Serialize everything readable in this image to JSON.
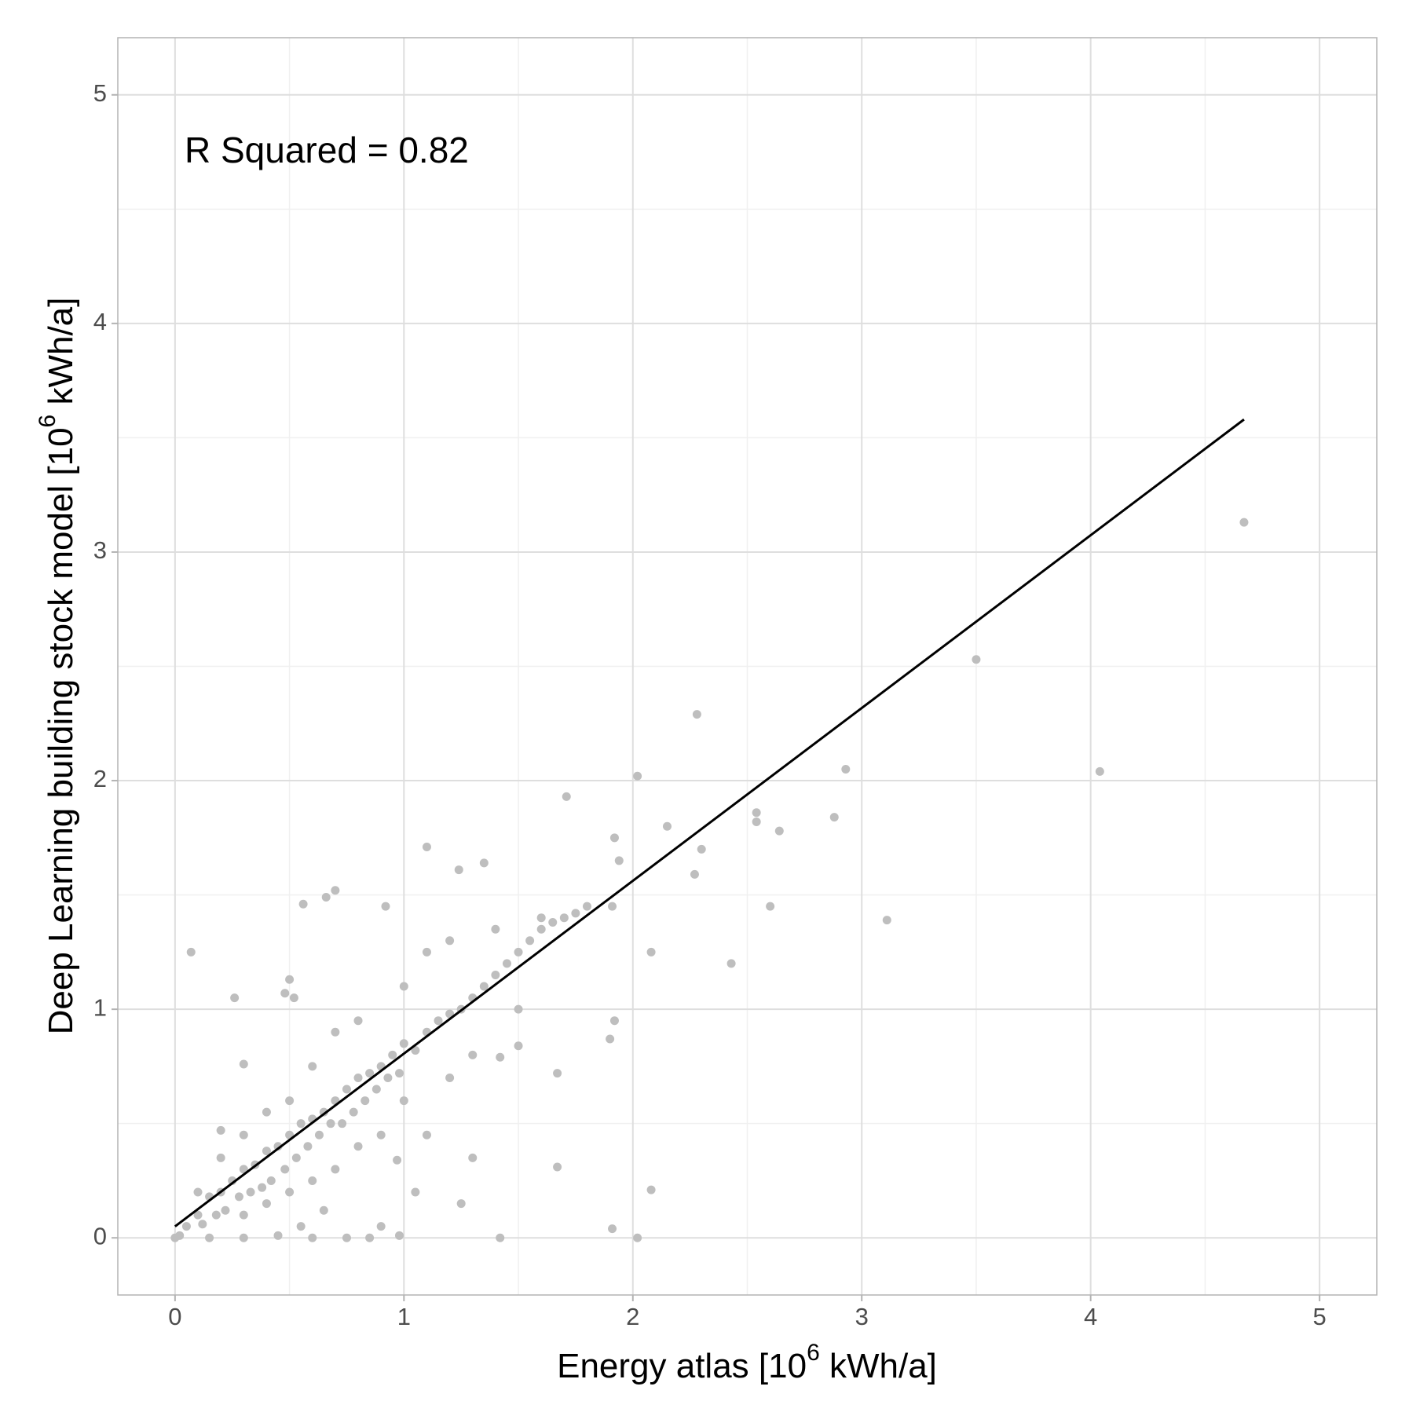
{
  "chart_data": {
    "type": "scatter",
    "xlabel": [
      "Energy atlas [10",
      "6",
      " kWh/a]"
    ],
    "ylabel": [
      "Deep Learning building stock model [10",
      "6",
      " kWh/a]"
    ],
    "annotation": "R Squared = 0.82",
    "xlim": [
      -0.25,
      5.25
    ],
    "ylim": [
      -0.25,
      5.25
    ],
    "xticks": [
      0,
      1,
      2,
      3,
      4,
      5
    ],
    "yticks": [
      0,
      1,
      2,
      3,
      4,
      5
    ],
    "minor_ticks": [
      0.5,
      1.5,
      2.5,
      3.5,
      4.5
    ],
    "grid": true,
    "series": [
      {
        "type": "scatter",
        "color": "#bebebe",
        "x": [
          0.07,
          0.26,
          4.67,
          3.5,
          4.04,
          2.28,
          2.93,
          2.02,
          2.88,
          2.54,
          2.54,
          2.64,
          2.6,
          3.11,
          2.43,
          2.08,
          2.27,
          2.15,
          2.3,
          1.71,
          1.1,
          1.35,
          1.24,
          0.7,
          0.66,
          0.56,
          0.92,
          1.92,
          1.94,
          1.91,
          1.92,
          1.9,
          1.67,
          1.67,
          2.08,
          1.91,
          2.02,
          1.42,
          1.42,
          1.5,
          1.3,
          1.25,
          1.05,
          1.1,
          0.97,
          0.98,
          0.75,
          0.6,
          0.5,
          0.48,
          0.52,
          0.3,
          0.2,
          0.1,
          0.05,
          0,
          0.02,
          0.15,
          0.3,
          0.45,
          0.85,
          0.9,
          0.1,
          0.12,
          0.15,
          0.18,
          0.2,
          0.22,
          0.25,
          0.28,
          0.3,
          0.33,
          0.35,
          0.38,
          0.4,
          0.42,
          0.45,
          0.48,
          0.5,
          0.53,
          0.55,
          0.58,
          0.6,
          0.63,
          0.65,
          0.68,
          0.7,
          0.73,
          0.75,
          0.78,
          0.8,
          0.83,
          0.85,
          0.88,
          0.9,
          0.93,
          0.95,
          0.98,
          1.0,
          1.05,
          1.1,
          1.15,
          1.2,
          1.25,
          1.3,
          1.35,
          1.4,
          1.45,
          1.5,
          1.55,
          1.6,
          1.65,
          1.7,
          1.75,
          1.8,
          0.2,
          0.3,
          0.4,
          0.5,
          0.6,
          0.7,
          0.8,
          1.0,
          1.1,
          1.2,
          1.4,
          1.6,
          0.3,
          0.4,
          0.5,
          0.6,
          0.7,
          0.8,
          0.9,
          1.0,
          1.2,
          1.3,
          1.5,
          0.55,
          0.65
        ],
        "values": [
          1.25,
          1.05,
          3.13,
          2.53,
          2.04,
          2.29,
          2.05,
          2.02,
          1.84,
          1.86,
          1.82,
          1.78,
          1.45,
          1.39,
          1.2,
          1.25,
          1.59,
          1.8,
          1.7,
          1.93,
          1.71,
          1.64,
          1.61,
          1.52,
          1.49,
          1.46,
          1.45,
          1.75,
          1.65,
          1.45,
          0.95,
          0.87,
          0.72,
          0.31,
          0.21,
          0.04,
          0,
          0,
          0.79,
          0.84,
          0.35,
          0.15,
          0.2,
          0.45,
          0.34,
          0.01,
          0,
          0,
          1.13,
          1.07,
          1.05,
          0.76,
          0.47,
          0.2,
          0.05,
          0,
          0.01,
          0,
          0,
          0.01,
          0,
          0.05,
          0.1,
          0.06,
          0.18,
          0.1,
          0.2,
          0.12,
          0.25,
          0.18,
          0.3,
          0.2,
          0.32,
          0.22,
          0.38,
          0.25,
          0.4,
          0.3,
          0.45,
          0.35,
          0.5,
          0.4,
          0.52,
          0.45,
          0.55,
          0.5,
          0.6,
          0.5,
          0.65,
          0.55,
          0.7,
          0.6,
          0.72,
          0.65,
          0.75,
          0.7,
          0.8,
          0.72,
          0.85,
          0.82,
          0.9,
          0.95,
          0.98,
          1.0,
          1.05,
          1.1,
          1.15,
          1.2,
          1.25,
          1.3,
          1.35,
          1.38,
          1.4,
          1.42,
          1.45,
          0.35,
          0.45,
          0.55,
          0.6,
          0.75,
          0.9,
          0.95,
          1.1,
          1.25,
          1.3,
          1.35,
          1.4,
          0.1,
          0.15,
          0.2,
          0.25,
          0.3,
          0.4,
          0.45,
          0.6,
          0.7,
          0.8,
          1.0,
          0.05,
          0.12
        ]
      },
      {
        "type": "line",
        "color": "#000000",
        "x": [
          0,
          4.67
        ],
        "values": [
          0.05,
          3.58
        ]
      }
    ]
  }
}
